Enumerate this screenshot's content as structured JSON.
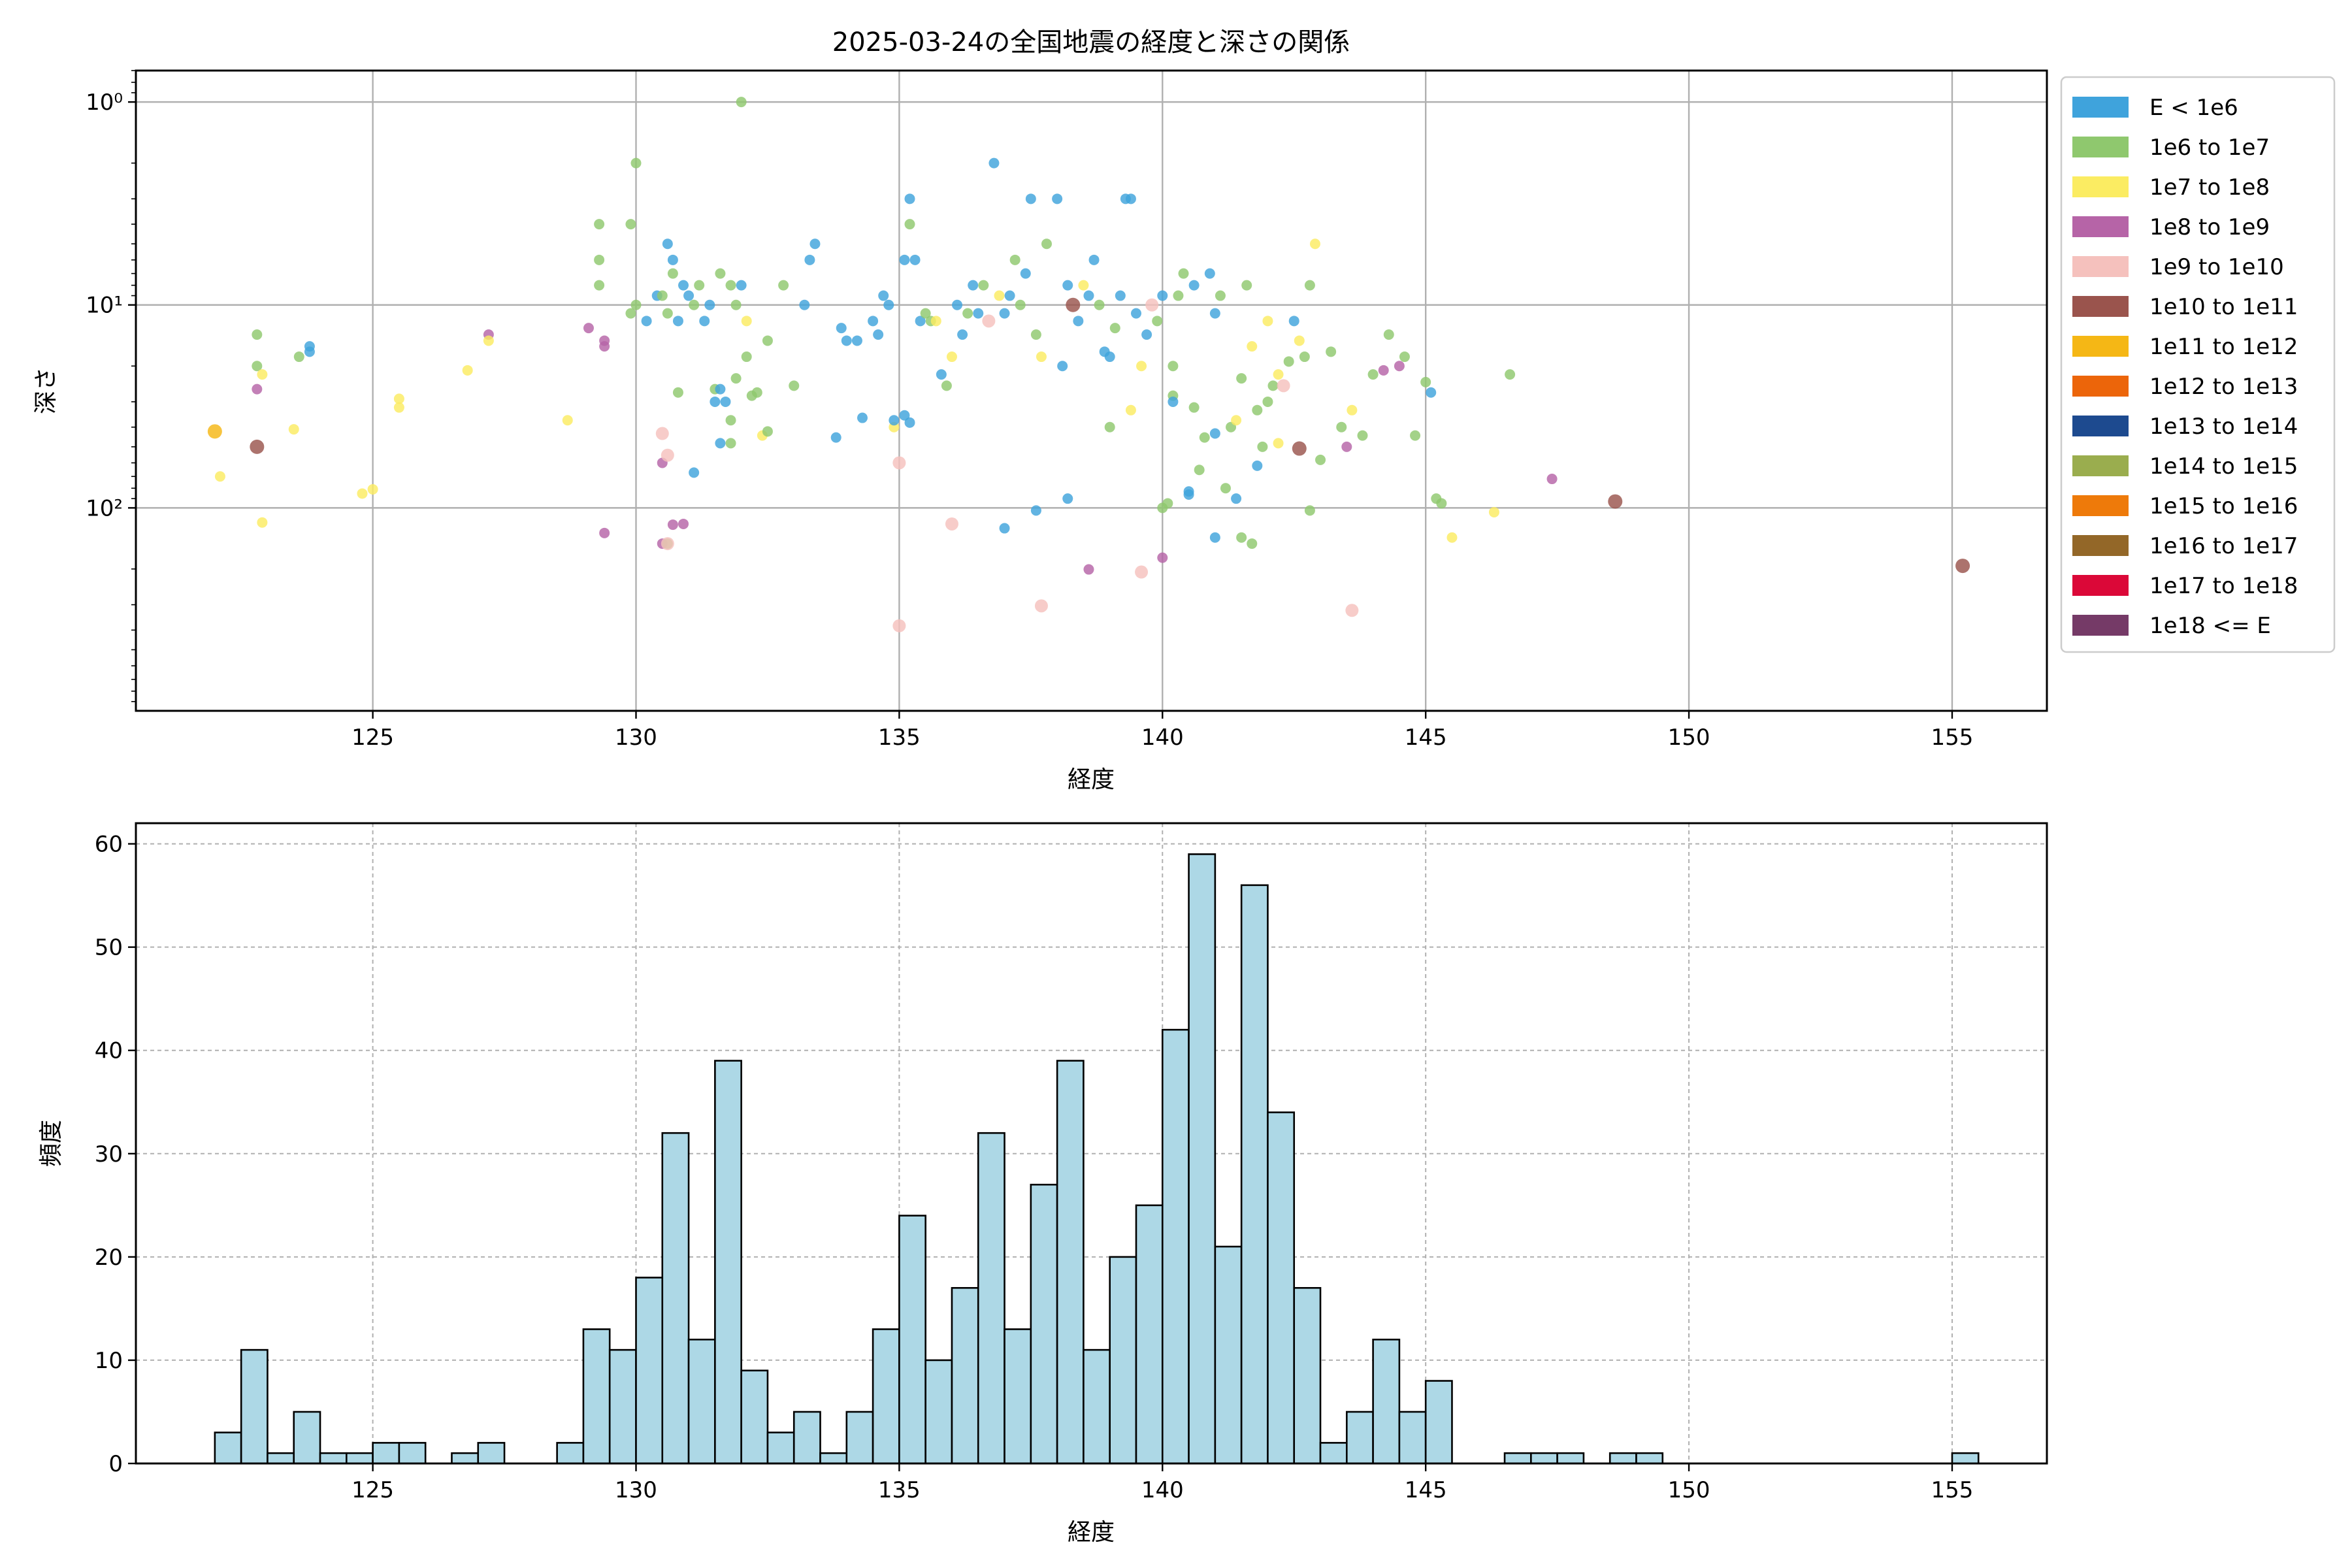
{
  "chart_data": [
    {
      "type": "scatter",
      "title": "2025-03-24の全国地震の経度と深さの関係",
      "xlabel": "経度",
      "ylabel": "深さ",
      "xlim": [
        120.5,
        156.8
      ],
      "ylim": [
        1000,
        0.7
      ],
      "y_scale": "log",
      "y_inverted": true,
      "x_ticks": [
        "125",
        "130",
        "135",
        "140",
        "145",
        "150",
        "155"
      ],
      "y_ticks": [
        "10⁰",
        "10¹",
        "10²"
      ],
      "grid": true,
      "legend_position": "outside-right",
      "legend": [
        {
          "label": "E < 1e6",
          "color": "#3fa3dc"
        },
        {
          "label": "1e6 to 1e7",
          "color": "#8fc86e"
        },
        {
          "label": "1e7 to 1e8",
          "color": "#fbec62"
        },
        {
          "label": "1e8 to 1e9",
          "color": "#b664a7"
        },
        {
          "label": "1e9 to 1e10",
          "color": "#f5c1bd"
        },
        {
          "label": "1e10 to 1e11",
          "color": "#9a544d"
        },
        {
          "label": "1e11 to 1e12",
          "color": "#f5b715"
        },
        {
          "label": "1e12 to 1e13",
          "color": "#ec650a"
        },
        {
          "label": "1e13 to 1e14",
          "color": "#1d4a8f"
        },
        {
          "label": "1e14 to 1e15",
          "color": "#9aad4e"
        },
        {
          "label": "1e15 to 1e16",
          "color": "#ee7a0a"
        },
        {
          "label": "1e16 to 1e17",
          "color": "#936728"
        },
        {
          "label": "1e17 to 1e18",
          "color": "#db0838"
        },
        {
          "label": "1e18 <= E",
          "color": "#753a67"
        }
      ],
      "points": [
        [
          122.0,
          42,
          6
        ],
        [
          122.1,
          70,
          2
        ],
        [
          122.8,
          14,
          1
        ],
        [
          122.8,
          20,
          1
        ],
        [
          122.8,
          26,
          3
        ],
        [
          122.8,
          50,
          5
        ],
        [
          122.9,
          118,
          2
        ],
        [
          122.9,
          22,
          2
        ],
        [
          123.5,
          41,
          2
        ],
        [
          123.6,
          18,
          1
        ],
        [
          123.8,
          16,
          0
        ],
        [
          123.8,
          17,
          0
        ],
        [
          124.8,
          85,
          2
        ],
        [
          125.0,
          81,
          2
        ],
        [
          125.5,
          29,
          2
        ],
        [
          125.5,
          32,
          2
        ],
        [
          126.8,
          21,
          2
        ],
        [
          127.2,
          14,
          3
        ],
        [
          127.2,
          15,
          2
        ],
        [
          128.7,
          37,
          2
        ],
        [
          129.1,
          13,
          3
        ],
        [
          129.3,
          6,
          1
        ],
        [
          129.3,
          8,
          1
        ],
        [
          129.3,
          4,
          1
        ],
        [
          129.4,
          15,
          3
        ],
        [
          129.4,
          16,
          3
        ],
        [
          129.4,
          133,
          3
        ],
        [
          129.9,
          4,
          1
        ],
        [
          130.0,
          2,
          1
        ],
        [
          129.9,
          11,
          1
        ],
        [
          130.0,
          10,
          1
        ],
        [
          130.2,
          12,
          0
        ],
        [
          130.4,
          9,
          0
        ],
        [
          130.5,
          9,
          1
        ],
        [
          130.5,
          43,
          4
        ],
        [
          130.5,
          60,
          3
        ],
        [
          130.5,
          150,
          3
        ],
        [
          130.6,
          11,
          1
        ],
        [
          130.6,
          55,
          4
        ],
        [
          130.6,
          150,
          1
        ],
        [
          130.6,
          5,
          0
        ],
        [
          130.7,
          6,
          0
        ],
        [
          130.7,
          7,
          1
        ],
        [
          130.8,
          12,
          0
        ],
        [
          130.8,
          27,
          1
        ],
        [
          130.9,
          8,
          0
        ],
        [
          130.9,
          120,
          3
        ],
        [
          131.0,
          9,
          0
        ],
        [
          131.1,
          67,
          0
        ],
        [
          131.1,
          10,
          1
        ],
        [
          131.2,
          8,
          1
        ],
        [
          131.3,
          12,
          0
        ],
        [
          131.4,
          10,
          0
        ],
        [
          131.5,
          30,
          0
        ],
        [
          131.5,
          26,
          1
        ],
        [
          131.6,
          7,
          1
        ],
        [
          131.6,
          48,
          0
        ],
        [
          131.6,
          26,
          0
        ],
        [
          131.7,
          30,
          0
        ],
        [
          131.8,
          48,
          1
        ],
        [
          131.8,
          37,
          1
        ],
        [
          131.8,
          8,
          1
        ],
        [
          131.9,
          23,
          1
        ],
        [
          131.9,
          10,
          1
        ],
        [
          132.0,
          8,
          0
        ],
        [
          132.0,
          1,
          1
        ],
        [
          132.1,
          18,
          1
        ],
        [
          132.1,
          12,
          2
        ],
        [
          132.2,
          28,
          1
        ],
        [
          132.3,
          27,
          1
        ],
        [
          132.4,
          44,
          2
        ],
        [
          132.5,
          42,
          1
        ],
        [
          132.5,
          15,
          1
        ],
        [
          132.8,
          8,
          1
        ],
        [
          133.0,
          25,
          1
        ],
        [
          133.2,
          10,
          0
        ],
        [
          133.3,
          6,
          0
        ],
        [
          133.4,
          5,
          0
        ],
        [
          133.9,
          13,
          0
        ],
        [
          134.0,
          15,
          0
        ],
        [
          134.2,
          15,
          0
        ],
        [
          134.3,
          36,
          0
        ],
        [
          134.5,
          12,
          0
        ],
        [
          134.6,
          14,
          0
        ],
        [
          134.7,
          9,
          0
        ],
        [
          134.8,
          10,
          0
        ],
        [
          134.9,
          40,
          2
        ],
        [
          135.1,
          35,
          0
        ],
        [
          135.1,
          6,
          0
        ],
        [
          135.2,
          3,
          0
        ],
        [
          135.2,
          4,
          1
        ],
        [
          135.3,
          6,
          0
        ],
        [
          135.4,
          12,
          0
        ],
        [
          135.5,
          11,
          1
        ],
        [
          135.6,
          12,
          1
        ],
        [
          135.7,
          12,
          2
        ],
        [
          135.8,
          22,
          0
        ],
        [
          135.9,
          25,
          1
        ],
        [
          136.0,
          18,
          2
        ],
        [
          136.1,
          10,
          0
        ],
        [
          136.2,
          14,
          0
        ],
        [
          136.3,
          11,
          1
        ],
        [
          136.4,
          8,
          0
        ],
        [
          136.5,
          11,
          0
        ],
        [
          136.6,
          8,
          1
        ],
        [
          136.7,
          12,
          4
        ],
        [
          136.8,
          2,
          0
        ],
        [
          136.9,
          9,
          2
        ],
        [
          137.0,
          11,
          0
        ],
        [
          137.1,
          9,
          0
        ],
        [
          137.2,
          6,
          1
        ],
        [
          137.3,
          10,
          1
        ],
        [
          137.4,
          7,
          0
        ],
        [
          137.5,
          3,
          0
        ],
        [
          137.6,
          14,
          1
        ],
        [
          137.7,
          18,
          2
        ],
        [
          137.8,
          5,
          1
        ],
        [
          138.0,
          3,
          0
        ],
        [
          138.1,
          20,
          0
        ],
        [
          138.2,
          8,
          0
        ],
        [
          138.3,
          10,
          5
        ],
        [
          138.4,
          12,
          0
        ],
        [
          138.5,
          8,
          2
        ],
        [
          138.6,
          9,
          0
        ],
        [
          138.7,
          6,
          0
        ],
        [
          138.8,
          10,
          1
        ],
        [
          138.9,
          17,
          0
        ],
        [
          139.0,
          18,
          0
        ],
        [
          139.1,
          13,
          1
        ],
        [
          139.2,
          9,
          0
        ],
        [
          139.3,
          3,
          0
        ],
        [
          139.4,
          3,
          0
        ],
        [
          139.5,
          11,
          0
        ],
        [
          139.6,
          20,
          2
        ],
        [
          139.7,
          14,
          0
        ],
        [
          139.8,
          10,
          4
        ],
        [
          139.9,
          12,
          1
        ],
        [
          140.0,
          9,
          0
        ],
        [
          140.0,
          100,
          1
        ],
        [
          140.1,
          95,
          1
        ],
        [
          140.2,
          28,
          1
        ],
        [
          140.2,
          20,
          1
        ],
        [
          140.3,
          9,
          1
        ],
        [
          140.4,
          7,
          1
        ],
        [
          140.5,
          83,
          0
        ],
        [
          140.6,
          8,
          0
        ],
        [
          140.7,
          65,
          1
        ],
        [
          140.8,
          45,
          1
        ],
        [
          140.9,
          7,
          0
        ],
        [
          141.0,
          11,
          0
        ],
        [
          141.1,
          9,
          1
        ],
        [
          141.2,
          80,
          1
        ],
        [
          141.3,
          40,
          1
        ],
        [
          141.4,
          37,
          2
        ],
        [
          141.5,
          23,
          1
        ],
        [
          141.6,
          8,
          1
        ],
        [
          141.7,
          16,
          2
        ],
        [
          141.8,
          33,
          1
        ],
        [
          141.9,
          50,
          1
        ],
        [
          142.0,
          12,
          2
        ],
        [
          142.1,
          25,
          1
        ],
        [
          142.2,
          22,
          2
        ],
        [
          142.3,
          25,
          4
        ],
        [
          142.4,
          19,
          1
        ],
        [
          142.5,
          12,
          0
        ],
        [
          142.6,
          15,
          2
        ],
        [
          142.7,
          18,
          1
        ],
        [
          142.8,
          8,
          1
        ],
        [
          142.9,
          5,
          2
        ],
        [
          143.2,
          17,
          1
        ],
        [
          143.4,
          40,
          1
        ],
        [
          143.5,
          50,
          3
        ],
        [
          143.6,
          33,
          2
        ],
        [
          143.8,
          44,
          1
        ],
        [
          144.0,
          22,
          1
        ],
        [
          144.2,
          21,
          3
        ],
        [
          144.3,
          14,
          1
        ],
        [
          144.5,
          20,
          3
        ],
        [
          144.6,
          18,
          1
        ],
        [
          144.8,
          44,
          1
        ],
        [
          145.0,
          24,
          1
        ],
        [
          145.1,
          27,
          0
        ],
        [
          145.2,
          90,
          1
        ],
        [
          145.3,
          95,
          1
        ],
        [
          145.5,
          140,
          2
        ],
        [
          146.3,
          105,
          2
        ],
        [
          146.6,
          22,
          1
        ],
        [
          147.4,
          72,
          3
        ],
        [
          148.6,
          93,
          5
        ],
        [
          155.2,
          193,
          5
        ],
        [
          137.6,
          103,
          0
        ],
        [
          138.2,
          90,
          0
        ],
        [
          137.0,
          126,
          0
        ],
        [
          136.0,
          120,
          4
        ],
        [
          135.0,
          60,
          4
        ],
        [
          133.8,
          45,
          0
        ],
        [
          134.9,
          37,
          0
        ],
        [
          135.2,
          38,
          0
        ],
        [
          139.0,
          40,
          1
        ],
        [
          139.4,
          33,
          2
        ],
        [
          140.6,
          32,
          1
        ],
        [
          141.0,
          43,
          0
        ],
        [
          141.4,
          90,
          0
        ],
        [
          141.8,
          62,
          0
        ],
        [
          142.2,
          48,
          2
        ],
        [
          142.6,
          51,
          5
        ],
        [
          138.6,
          201,
          3
        ],
        [
          139.6,
          207,
          4
        ],
        [
          140.0,
          176,
          3
        ],
        [
          137.7,
          304,
          4
        ],
        [
          135.0,
          381,
          4
        ],
        [
          143.6,
          320,
          4
        ],
        [
          130.6,
          150,
          4
        ],
        [
          130.7,
          121,
          3
        ],
        [
          141.5,
          140,
          1
        ],
        [
          141.7,
          150,
          1
        ],
        [
          142.8,
          103,
          1
        ],
        [
          141.0,
          140,
          0
        ],
        [
          140.5,
          86,
          0
        ],
        [
          140.2,
          30,
          0
        ],
        [
          143.0,
          58,
          1
        ],
        [
          142.0,
          30,
          1
        ]
      ]
    },
    {
      "type": "bar",
      "title": "",
      "xlabel": "経度",
      "ylabel": "頻度",
      "xlim": [
        120.5,
        156.8
      ],
      "ylim": [
        0,
        62
      ],
      "x_ticks": [
        "125",
        "130",
        "135",
        "140",
        "145",
        "150",
        "155"
      ],
      "y_ticks": [
        "0",
        "10",
        "20",
        "30",
        "40",
        "50",
        "60"
      ],
      "grid": true,
      "bar_color": "#add8e6",
      "bin_start": 122.0,
      "bin_width": 0.5,
      "values": [
        3,
        11,
        1,
        5,
        1,
        1,
        2,
        2,
        0,
        1,
        2,
        0,
        0,
        2,
        13,
        11,
        18,
        32,
        12,
        39,
        9,
        3,
        5,
        1,
        5,
        13,
        24,
        10,
        17,
        32,
        13,
        27,
        39,
        11,
        20,
        25,
        42,
        59,
        21,
        56,
        34,
        17,
        2,
        5,
        12,
        5,
        8,
        0,
        0,
        1,
        1,
        1,
        0,
        1,
        1,
        0,
        0,
        0,
        0,
        0,
        0,
        0,
        0,
        0,
        0,
        0,
        1
      ]
    }
  ]
}
